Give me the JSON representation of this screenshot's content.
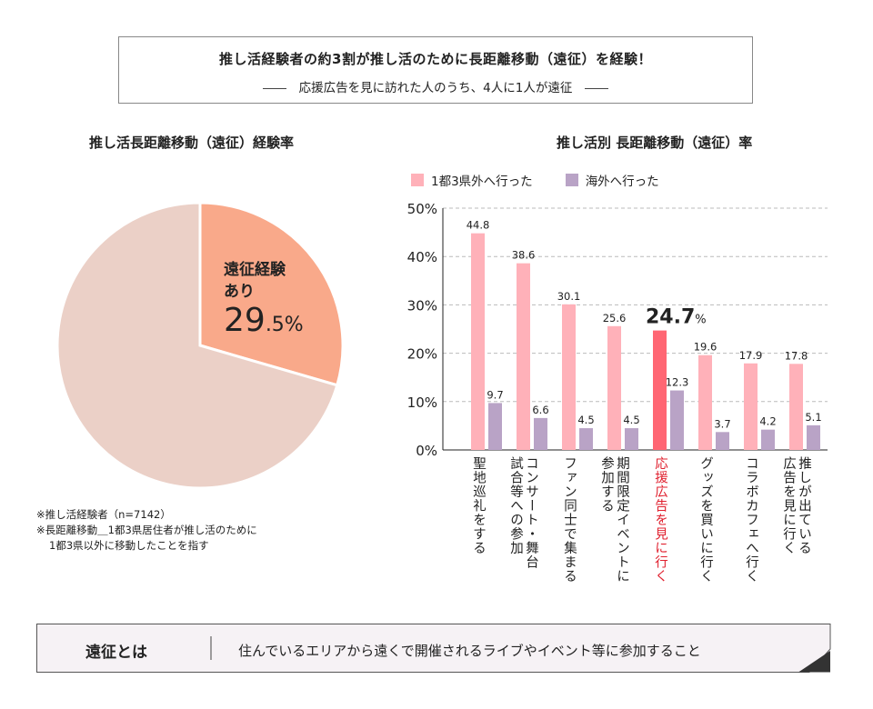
{
  "header": {
    "title": "推し活経験者の約3割が推し活のために長距離移動（遠征）を経験！",
    "subtitle": "応援広告を見に訪れた人のうち、4人に1人が遠征"
  },
  "colors": {
    "pie_main": "#F9A98A",
    "pie_rest": "#EBD0C7",
    "domestic": "#FFB1B9",
    "overseas": "#B9A3C6",
    "highlight": "#FF6673",
    "highlight_text": "#E0212F"
  },
  "chart_data": [
    {
      "type": "pie",
      "title": "推し活長距離移動（遠征）経験率",
      "slices": [
        {
          "label": "遠征経験あり",
          "value": 29.5,
          "label_line1": "遠征経験",
          "label_line2": "あり",
          "value_int": "29",
          "value_dec": ".5%"
        },
        {
          "label": "",
          "value": 70.5
        }
      ]
    },
    {
      "type": "bar",
      "title": "推し活別 長距離移動（遠征）率",
      "ylim": [
        0,
        50
      ],
      "yticks": [
        "0%",
        "10%",
        "20%",
        "30%",
        "40%",
        "50%"
      ],
      "grid": true,
      "legend_position": "top",
      "categories": [
        [
          "聖地巡礼をする"
        ],
        [
          "コンサート・舞台",
          "試合等への参加"
        ],
        [
          "ファン同士で集まる"
        ],
        [
          "期間限定イベントに",
          "参加する"
        ],
        [
          "応援広告を見に行く"
        ],
        [
          "グッズを買いに行く"
        ],
        [
          "コラボカフェへ行く"
        ],
        [
          "推しが出ている",
          "広告を見に行く"
        ]
      ],
      "highlight_index": 4,
      "highlight_label": {
        "value": "24.7",
        "unit": "%"
      },
      "series": [
        {
          "name": "1都3県外へ行った",
          "values": [
            44.8,
            38.6,
            30.1,
            25.6,
            24.7,
            19.6,
            17.9,
            17.8
          ]
        },
        {
          "name": "海外へ行った",
          "values": [
            9.7,
            6.6,
            4.5,
            4.5,
            12.3,
            3.7,
            4.2,
            5.1
          ]
        }
      ]
    }
  ],
  "notes": [
    "※推し活経験者（n=7142）",
    "※長距離移動＿1都3県居住者が推し活のために",
    "1都3県以外に移動したことを指す"
  ],
  "banner": {
    "term": "遠征とは",
    "definition": "住んでいるエリアから遠くで開催されるライブやイベント等に参加すること"
  }
}
